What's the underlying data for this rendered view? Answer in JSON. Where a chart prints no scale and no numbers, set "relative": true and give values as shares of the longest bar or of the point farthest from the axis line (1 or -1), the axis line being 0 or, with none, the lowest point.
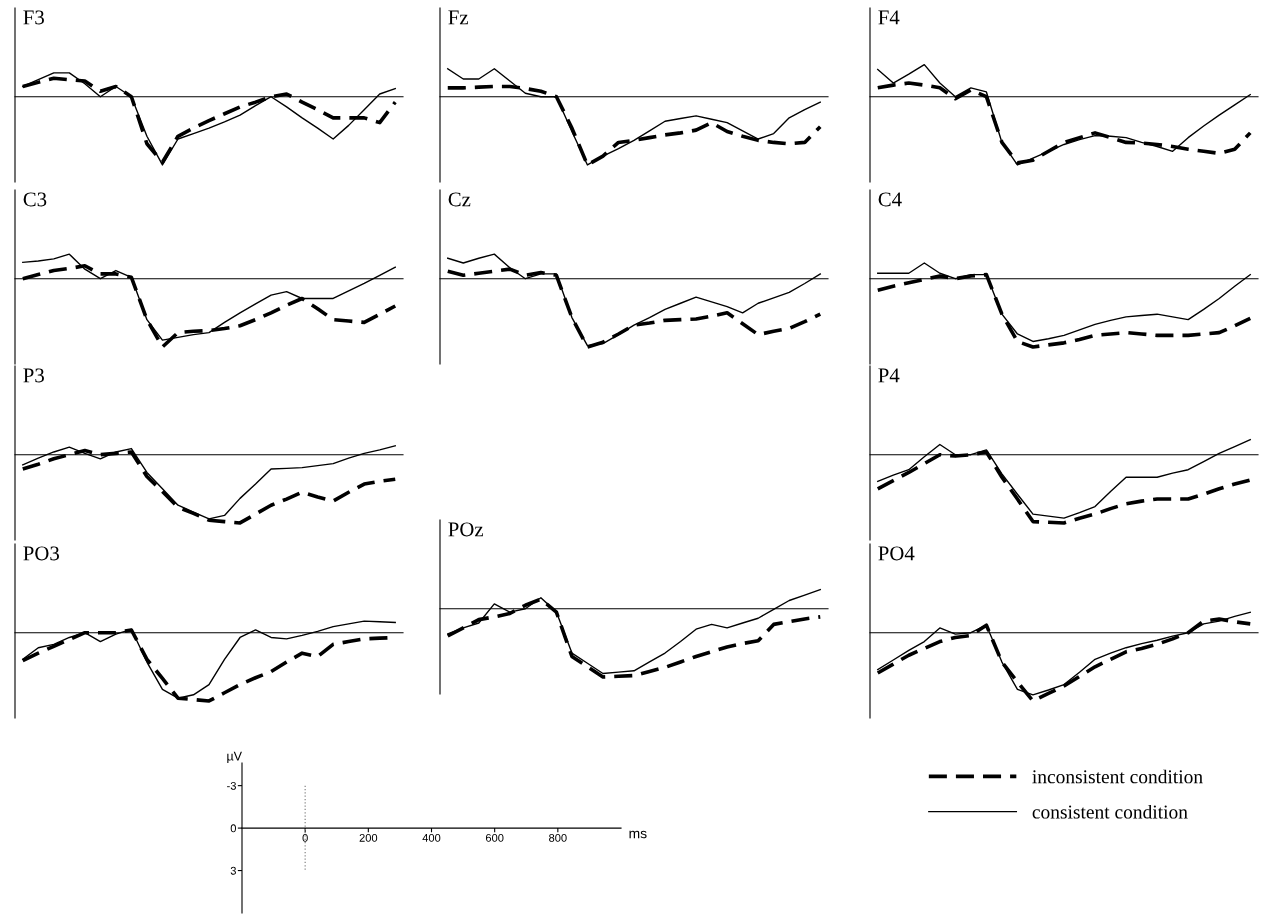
{
  "chart_data": [
    {
      "type": "line",
      "title": "F3",
      "relative": true,
      "legend": "bottom right",
      "categories": [
        null,
        null,
        null,
        null,
        null,
        null,
        null,
        null,
        null,
        null,
        null,
        null,
        null,
        null,
        null,
        null,
        null,
        null,
        null,
        null,
        null,
        null,
        null,
        null,
        null
      ],
      "series": [
        {
          "name": "inconsistent condition",
          "color": "#000000",
          "line_style": "dashed",
          "values": [
            0.15,
            0.21,
            0.27,
            0.25,
            0.23,
            0.08,
            0.15,
            0,
            -0.69,
            -0.96,
            -0.58,
            -0.46,
            -0.35,
            -0.25,
            -0.15,
            -0.08,
            0,
            0.04,
            -0.08,
            -0.19,
            -0.31,
            -0.31,
            -0.31,
            -0.38,
            -0.08
          ]
        },
        {
          "name": "consistent condition",
          "color": "#000000",
          "line_style": "solid",
          "values": [
            0.15,
            0.25,
            0.35,
            0.35,
            0.19,
            0,
            0.15,
            0,
            -0.58,
            -1,
            -0.62,
            -0.54,
            -0.46,
            -0.37,
            -0.27,
            -0.13,
            0,
            -0.15,
            -0.31,
            -0.46,
            -0.62,
            -0.42,
            -0.19,
            0.04,
            0.12
          ]
        }
      ]
    },
    {
      "type": "line",
      "title": "Fz",
      "relative": true,
      "categories": [
        null,
        null,
        null,
        null,
        null,
        null,
        null,
        null,
        null,
        null,
        null,
        null,
        null,
        null,
        null,
        null,
        null,
        null,
        null,
        null,
        null,
        null,
        null,
        null,
        null
      ],
      "series": [
        {
          "color": "#000000",
          "line_style": "dashed",
          "values": [
            0.13,
            0.13,
            0.14,
            0.15,
            0.15,
            0.12,
            0.08,
            0,
            -0.46,
            -1,
            -0.87,
            -0.67,
            -0.64,
            -0.6,
            -0.56,
            -0.53,
            -0.49,
            -0.38,
            -0.51,
            -0.58,
            -0.64,
            -0.67,
            -0.69,
            -0.67,
            -0.44
          ]
        },
        {
          "color": "#000000",
          "line_style": "solid",
          "values": [
            0.41,
            0.26,
            0.26,
            0.41,
            0.23,
            0.05,
            0,
            0,
            -0.51,
            -1,
            -0.87,
            -0.76,
            -0.64,
            -0.5,
            -0.36,
            -0.32,
            -0.28,
            -0.33,
            -0.38,
            -0.5,
            -0.62,
            -0.54,
            -0.31,
            -0.19,
            -0.08
          ]
        }
      ]
    },
    {
      "type": "line",
      "title": "F4",
      "relative": true,
      "categories": [
        null,
        null,
        null,
        null,
        null,
        null,
        null,
        null,
        null,
        null,
        null,
        null,
        null,
        null,
        null,
        null,
        null,
        null,
        null,
        null,
        null,
        null,
        null,
        null,
        null
      ],
      "series": [
        {
          "color": "#000000",
          "line_style": "dashed",
          "values": [
            0.13,
            0.17,
            0.2,
            0.17,
            0.13,
            -0.03,
            0.1,
            0,
            -0.67,
            -0.97,
            -0.93,
            -0.8,
            -0.67,
            -0.6,
            -0.53,
            -0.6,
            -0.67,
            -0.68,
            -0.7,
            -0.73,
            -0.77,
            -0.8,
            -0.83,
            -0.77,
            -0.53
          ]
        },
        {
          "color": "#000000",
          "line_style": "solid",
          "values": [
            0.4,
            0.2,
            0.33,
            0.47,
            0.2,
            0,
            0.13,
            0.07,
            -0.67,
            -1,
            -0.9,
            -0.8,
            -0.7,
            -0.63,
            -0.57,
            -0.58,
            -0.6,
            -0.67,
            -0.73,
            -0.8,
            -0.6,
            -0.43,
            -0.27,
            -0.12,
            0.03
          ]
        }
      ]
    },
    {
      "type": "line",
      "title": "C3",
      "relative": true,
      "categories": [
        null,
        null,
        null,
        null,
        null,
        null,
        null,
        null,
        null,
        null,
        null,
        null,
        null,
        null,
        null,
        null,
        null,
        null,
        null,
        null,
        null,
        null,
        null,
        null,
        null
      ],
      "series": [
        {
          "color": "#000000",
          "line_style": "dashed",
          "values": [
            0,
            0.06,
            0.12,
            0.15,
            0.19,
            0.07,
            0.07,
            0.02,
            -0.6,
            -1,
            -0.79,
            -0.77,
            -0.76,
            -0.73,
            -0.69,
            -0.6,
            -0.5,
            -0.39,
            -0.29,
            -0.44,
            -0.6,
            -0.62,
            -0.64,
            -0.52,
            -0.4
          ]
        },
        {
          "color": "#000000",
          "line_style": "solid",
          "values": [
            0.24,
            0.26,
            0.29,
            0.36,
            0.14,
            0,
            0.12,
            0.02,
            -0.6,
            -0.9,
            -0.86,
            -0.82,
            -0.79,
            -0.64,
            -0.5,
            -0.37,
            -0.24,
            -0.19,
            -0.29,
            -0.29,
            -0.29,
            -0.18,
            -0.07,
            0.05,
            0.17
          ]
        }
      ]
    },
    {
      "type": "line",
      "title": "Cz",
      "relative": true,
      "categories": [
        null,
        null,
        null,
        null,
        null,
        null,
        null,
        null,
        null,
        null,
        null,
        null,
        null,
        null,
        null,
        null,
        null,
        null,
        null,
        null,
        null,
        null,
        null,
        null,
        null
      ],
      "series": [
        {
          "color": "#000000",
          "line_style": "dashed",
          "values": [
            0.11,
            0.05,
            0.08,
            0.11,
            0.14,
            0.05,
            0.09,
            0.05,
            -0.57,
            -1,
            -0.93,
            -0.81,
            -0.68,
            -0.65,
            -0.61,
            -0.6,
            -0.59,
            -0.55,
            -0.5,
            -0.66,
            -0.82,
            -0.77,
            -0.73,
            -0.63,
            -0.52
          ]
        },
        {
          "color": "#000000",
          "line_style": "solid",
          "values": [
            0.3,
            0.23,
            0.3,
            0.36,
            0.16,
            0,
            0.07,
            0.07,
            -0.57,
            -0.98,
            -0.95,
            -0.82,
            -0.68,
            -0.57,
            -0.45,
            -0.36,
            -0.27,
            -0.34,
            -0.41,
            -0.5,
            -0.36,
            -0.28,
            -0.2,
            -0.07,
            0.07
          ]
        }
      ]
    },
    {
      "type": "line",
      "title": "C4",
      "relative": true,
      "categories": [
        null,
        null,
        null,
        null,
        null,
        null,
        null,
        null,
        null,
        null,
        null,
        null,
        null,
        null,
        null,
        null,
        null,
        null,
        null,
        null,
        null,
        null,
        null,
        null,
        null
      ],
      "series": [
        {
          "color": "#000000",
          "line_style": "dashed",
          "values": [
            -0.17,
            -0.11,
            -0.06,
            -0.01,
            0.04,
            0,
            0.04,
            0.06,
            -0.52,
            -0.92,
            -1,
            -0.97,
            -0.94,
            -0.89,
            -0.83,
            -0.81,
            -0.79,
            -0.81,
            -0.83,
            -0.83,
            -0.83,
            -0.81,
            -0.79,
            -0.69,
            -0.58
          ]
        },
        {
          "color": "#000000",
          "line_style": "solid",
          "values": [
            0.08,
            0.08,
            0.08,
            0.23,
            0.08,
            0,
            0.06,
            0.06,
            -0.52,
            -0.81,
            -0.92,
            -0.88,
            -0.83,
            -0.75,
            -0.67,
            -0.61,
            -0.56,
            -0.54,
            -0.52,
            -0.56,
            -0.6,
            -0.45,
            -0.29,
            -0.11,
            0.06
          ]
        }
      ]
    },
    {
      "type": "line",
      "title": "P3",
      "relative": true,
      "categories": [
        null,
        null,
        null,
        null,
        null,
        null,
        null,
        null,
        null,
        null,
        null,
        null,
        null,
        null,
        null,
        null,
        null,
        null,
        null,
        null,
        null,
        null,
        null,
        null,
        null
      ],
      "series": [
        {
          "color": "#000000",
          "line_style": "dashed",
          "values": [
            -0.21,
            -0.14,
            -0.06,
            0,
            0.06,
            0,
            0.02,
            0.04,
            -0.32,
            -0.54,
            -0.77,
            -0.86,
            -0.96,
            -0.98,
            -1,
            -0.87,
            -0.74,
            -0.65,
            -0.55,
            -0.62,
            -0.68,
            -0.55,
            -0.43,
            -0.39,
            -0.36
          ]
        },
        {
          "color": "#000000",
          "line_style": "solid",
          "values": [
            -0.15,
            -0.05,
            0.04,
            0.11,
            0.02,
            -0.06,
            0.04,
            0.09,
            -0.26,
            -0.5,
            -0.74,
            -0.84,
            -0.94,
            -0.89,
            -0.64,
            -0.43,
            -0.21,
            -0.2,
            -0.19,
            -0.16,
            -0.13,
            -0.05,
            0.02,
            0.07,
            0.13
          ]
        }
      ]
    },
    {
      "type": "line",
      "title": "P4",
      "relative": true,
      "categories": [
        null,
        null,
        null,
        null,
        null,
        null,
        null,
        null,
        null,
        null,
        null,
        null,
        null,
        null,
        null,
        null,
        null,
        null,
        null,
        null,
        null,
        null,
        null,
        null,
        null
      ],
      "series": [
        {
          "color": "#000000",
          "line_style": "dashed",
          "values": [
            -0.5,
            -0.38,
            -0.26,
            -0.13,
            0,
            -0.02,
            0,
            0.04,
            -0.33,
            -0.65,
            -0.98,
            -0.99,
            -1,
            -0.93,
            -0.87,
            -0.79,
            -0.72,
            -0.68,
            -0.65,
            -0.65,
            -0.65,
            -0.58,
            -0.5,
            -0.43,
            -0.37
          ]
        },
        {
          "color": "#000000",
          "line_style": "solid",
          "values": [
            -0.39,
            -0.3,
            -0.22,
            -0.03,
            0.15,
            0,
            0,
            0.07,
            -0.28,
            -0.58,
            -0.87,
            -0.9,
            -0.93,
            -0.85,
            -0.76,
            -0.54,
            -0.33,
            -0.33,
            -0.33,
            -0.27,
            -0.22,
            -0.1,
            0.02,
            0.12,
            0.22
          ]
        }
      ]
    },
    {
      "type": "line",
      "title": "PO3",
      "relative": true,
      "categories": [
        null,
        null,
        null,
        null,
        null,
        null,
        null,
        null,
        null,
        null,
        null,
        null,
        null,
        null,
        null,
        null,
        null,
        null,
        null,
        null,
        null,
        null,
        null,
        null,
        null
      ],
      "series": [
        {
          "color": "#000000",
          "line_style": "dashed",
          "values": [
            -0.41,
            -0.3,
            -0.2,
            -0.1,
            0,
            0,
            0,
            0.04,
            -0.39,
            -0.67,
            -0.96,
            -0.98,
            -1,
            -0.88,
            -0.76,
            -0.66,
            -0.57,
            -0.43,
            -0.3,
            -0.35,
            -0.17,
            -0.13,
            -0.09,
            -0.08,
            -0.07
          ]
        },
        {
          "color": "#000000",
          "line_style": "solid",
          "values": [
            -0.39,
            -0.22,
            -0.17,
            -0.07,
            0,
            -0.13,
            -0.02,
            0.05,
            -0.43,
            -0.83,
            -0.96,
            -0.91,
            -0.76,
            -0.39,
            -0.07,
            0.04,
            -0.07,
            -0.09,
            -0.04,
            0.02,
            0.09,
            0.13,
            0.17,
            0.16,
            0.15
          ]
        }
      ]
    },
    {
      "type": "line",
      "title": "POz",
      "relative": true,
      "categories": [
        null,
        null,
        null,
        null,
        null,
        null,
        null,
        null,
        null,
        null,
        null,
        null,
        null,
        null,
        null,
        null,
        null,
        null,
        null,
        null,
        null,
        null,
        null,
        null,
        null
      ],
      "series": [
        {
          "color": "#000000",
          "line_style": "dashed",
          "values": [
            -0.4,
            -0.28,
            -0.16,
            -0.12,
            -0.07,
            0.05,
            0.14,
            -0.05,
            -0.7,
            -0.85,
            -1,
            -0.99,
            -0.98,
            -0.92,
            -0.86,
            -0.78,
            -0.7,
            -0.63,
            -0.56,
            -0.51,
            -0.47,
            -0.23,
            -0.19,
            -0.15,
            -0.12
          ]
        },
        {
          "color": "#000000",
          "line_style": "solid",
          "values": [
            -0.37,
            -0.28,
            -0.21,
            0.07,
            -0.05,
            0,
            0.16,
            -0.05,
            -0.65,
            -0.8,
            -0.95,
            -0.93,
            -0.91,
            -0.78,
            -0.65,
            -0.48,
            -0.3,
            -0.23,
            -0.28,
            -0.21,
            -0.14,
            -0.01,
            0.12,
            0.2,
            0.28
          ]
        }
      ]
    },
    {
      "type": "line",
      "title": "PO4",
      "relative": true,
      "categories": [
        null,
        null,
        null,
        null,
        null,
        null,
        null,
        null,
        null,
        null,
        null,
        null,
        null,
        null,
        null,
        null,
        null,
        null,
        null,
        null,
        null,
        null,
        null,
        null,
        null
      ],
      "series": [
        {
          "color": "#000000",
          "line_style": "dashed",
          "values": [
            -0.59,
            -0.46,
            -0.33,
            -0.23,
            -0.13,
            -0.07,
            -0.04,
            0.11,
            -0.43,
            -0.72,
            -1,
            -0.89,
            -0.78,
            -0.64,
            -0.5,
            -0.39,
            -0.28,
            -0.23,
            -0.17,
            -0.09,
            0,
            0.17,
            0.2,
            0.16,
            0.13
          ]
        },
        {
          "color": "#000000",
          "line_style": "solid",
          "values": [
            -0.54,
            -0.4,
            -0.26,
            -0.13,
            0.07,
            -0.02,
            0,
            0.11,
            -0.43,
            -0.83,
            -0.91,
            -0.84,
            -0.76,
            -0.58,
            -0.39,
            -0.3,
            -0.22,
            -0.16,
            -0.11,
            -0.05,
            0,
            0.13,
            0.17,
            0.24,
            0.3
          ]
        }
      ]
    },
    {
      "type": "line",
      "xlabel": "ms",
      "ylabel": "µV",
      "xlim": [
        -200,
        1000
      ],
      "ylim": [
        6,
        -4.6
      ],
      "xticks": [
        0,
        200,
        400,
        600,
        800
      ],
      "yticks": [
        -3,
        0,
        3
      ],
      "ref_lines": [
        {
          "axis": "x",
          "value": 0,
          "line_style": "dotted"
        }
      ]
    }
  ]
}
